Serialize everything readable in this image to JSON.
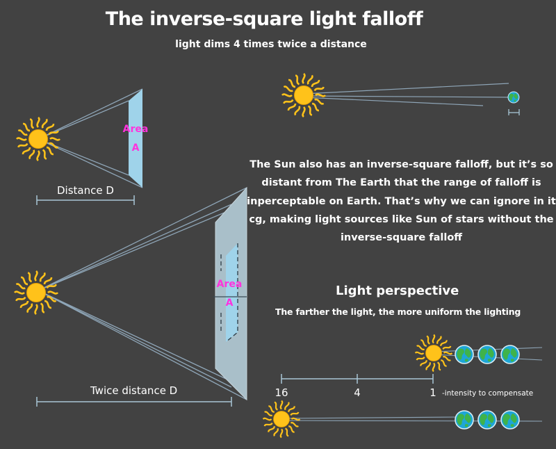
{
  "title": "The inverse-square light falloff",
  "subtitle": "light dims 4 times twice a distance",
  "near_panel": {
    "area_word": "Area",
    "area_letter": "A",
    "distance_label": "Distance D"
  },
  "far_panel": {
    "area_word": "Area",
    "area_letter": "A",
    "distance_label": "Twice distance D"
  },
  "sun_explanation": "The Sun also has an inverse-square falloff, but it’s so distant from The Earth that the range of falloff is inperceptable on Earth. That’s why we can ignore in it cg, making light sources like Sun of stars without the inverse-square falloff",
  "perspective": {
    "title": "Light perspective",
    "subtitle": "The farther the light, the more uniform the lighting",
    "scale_labels": [
      "16",
      "4",
      "1"
    ],
    "compensate_note": "-intensity to compensate"
  },
  "colors": {
    "background": "#424242",
    "sun": "#ffc21a",
    "panel": "#9fd3ea",
    "panel_large": "#a9bfc9",
    "ray": "#8fa6b8",
    "area_text": "#ff33dd",
    "earth_ocean": "#1ea6d6",
    "earth_land": "#3fb34a"
  },
  "icons": [
    "sun-icon",
    "earth-icon"
  ]
}
